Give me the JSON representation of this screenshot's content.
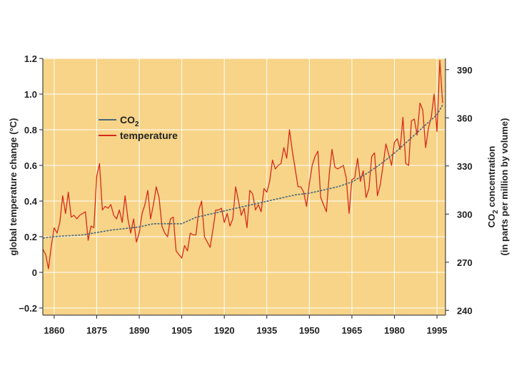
{
  "chart_data": {
    "type": "line",
    "title": "",
    "xlim": [
      1856,
      1998
    ],
    "y_left": {
      "label": "global temperature change (°C)",
      "lim": [
        -0.24,
        1.2
      ],
      "ticks": [
        1.2,
        1.0,
        0.8,
        0.6,
        0.4,
        0.2,
        0,
        -0.2
      ],
      "tick_labels": [
        "1.2",
        "1.0",
        "0.8",
        "0.6",
        "0.4",
        "0.2",
        "0",
        "−0.2"
      ]
    },
    "y_right": {
      "label_line1": "CO2 concentration",
      "label_line2": "(in parts per million by volume)",
      "lim": [
        237,
        397
      ],
      "ticks": [
        390,
        360,
        330,
        300,
        270,
        240
      ],
      "tick_labels": [
        "390",
        "360",
        "330",
        "300",
        "270",
        "240"
      ]
    },
    "x_ticks": [
      1860,
      1875,
      1890,
      1905,
      1920,
      1935,
      1950,
      1965,
      1980,
      1995
    ],
    "x_tick_labels": [
      "1860",
      "1875",
      "1890",
      "1905",
      "1920",
      "1935",
      "1950",
      "1965",
      "1980",
      "1995"
    ],
    "legend": {
      "placement": "top-left",
      "items": [
        {
          "label_main": "CO",
          "label_sub": "2",
          "color": "#4a6a7a"
        },
        {
          "label_main": "temperature",
          "label_sub": "",
          "color": "#d62a1a"
        }
      ]
    },
    "colors": {
      "plot_background": "#f7d488",
      "grid": "#ffffff",
      "co2_line": "#4a6a7a",
      "temperature_line": "#d62a1a"
    },
    "grid": true,
    "series": [
      {
        "name": "temperature",
        "axis": "left",
        "x": [
          1856,
          1857,
          1858,
          1859,
          1860,
          1861,
          1862,
          1863,
          1864,
          1865,
          1866,
          1867,
          1868,
          1869,
          1870,
          1871,
          1872,
          1873,
          1874,
          1875,
          1876,
          1877,
          1878,
          1879,
          1880,
          1881,
          1882,
          1883,
          1884,
          1885,
          1886,
          1887,
          1888,
          1889,
          1890,
          1891,
          1892,
          1893,
          1894,
          1895,
          1896,
          1897,
          1898,
          1899,
          1900,
          1901,
          1902,
          1903,
          1904,
          1905,
          1906,
          1907,
          1908,
          1909,
          1910,
          1911,
          1912,
          1913,
          1914,
          1915,
          1916,
          1917,
          1918,
          1919,
          1920,
          1921,
          1922,
          1923,
          1924,
          1925,
          1926,
          1927,
          1928,
          1929,
          1930,
          1931,
          1932,
          1933,
          1934,
          1935,
          1936,
          1937,
          1938,
          1939,
          1940,
          1941,
          1942,
          1943,
          1944,
          1945,
          1946,
          1947,
          1948,
          1949,
          1950,
          1951,
          1952,
          1953,
          1954,
          1955,
          1956,
          1957,
          1958,
          1959,
          1960,
          1961,
          1962,
          1963,
          1964,
          1965,
          1966,
          1967,
          1968,
          1969,
          1970,
          1971,
          1972,
          1973,
          1974,
          1975,
          1976,
          1977,
          1978,
          1979,
          1980,
          1981,
          1982,
          1983,
          1984,
          1985,
          1986,
          1987,
          1988,
          1989,
          1990,
          1991,
          1992,
          1993,
          1994,
          1995,
          1996,
          1997
        ],
        "y": [
          0.13,
          0.1,
          0.02,
          0.15,
          0.25,
          0.22,
          0.28,
          0.43,
          0.33,
          0.45,
          0.31,
          0.32,
          0.3,
          0.32,
          0.33,
          0.34,
          0.18,
          0.26,
          0.25,
          0.54,
          0.61,
          0.35,
          0.37,
          0.36,
          0.38,
          0.32,
          0.3,
          0.35,
          0.28,
          0.43,
          0.3,
          0.22,
          0.3,
          0.17,
          0.22,
          0.33,
          0.38,
          0.46,
          0.3,
          0.38,
          0.48,
          0.42,
          0.26,
          0.22,
          0.2,
          0.3,
          0.31,
          0.12,
          0.1,
          0.08,
          0.15,
          0.12,
          0.22,
          0.21,
          0.21,
          0.35,
          0.4,
          0.2,
          0.17,
          0.14,
          0.24,
          0.35,
          0.35,
          0.36,
          0.28,
          0.33,
          0.26,
          0.3,
          0.48,
          0.4,
          0.32,
          0.36,
          0.25,
          0.46,
          0.44,
          0.35,
          0.38,
          0.34,
          0.47,
          0.45,
          0.51,
          0.63,
          0.58,
          0.6,
          0.61,
          0.7,
          0.64,
          0.8,
          0.68,
          0.58,
          0.48,
          0.48,
          0.45,
          0.37,
          0.5,
          0.6,
          0.65,
          0.68,
          0.42,
          0.38,
          0.34,
          0.55,
          0.69,
          0.59,
          0.58,
          0.59,
          0.6,
          0.53,
          0.33,
          0.52,
          0.53,
          0.64,
          0.51,
          0.57,
          0.42,
          0.47,
          0.65,
          0.67,
          0.43,
          0.49,
          0.6,
          0.72,
          0.66,
          0.6,
          0.73,
          0.75,
          0.69,
          0.87,
          0.61,
          0.6,
          0.85,
          0.86,
          0.77,
          0.95,
          0.91,
          0.7,
          0.81,
          0.87,
          1.0,
          0.79,
          1.19,
          0.95
        ],
        "color": "#d62a1a"
      },
      {
        "name": "CO2",
        "axis": "right",
        "x": [
          1856,
          1860,
          1870,
          1880,
          1890,
          1895,
          1900,
          1905,
          1910,
          1915,
          1920,
          1925,
          1930,
          1935,
          1940,
          1945,
          1950,
          1955,
          1960,
          1965,
          1970,
          1975,
          1980,
          1985,
          1990,
          1995,
          1997
        ],
        "y": [
          285,
          286,
          287,
          290,
          292,
          294,
          294,
          294,
          298,
          300,
          302,
          304,
          306,
          308,
          310,
          312,
          313,
          315,
          317,
          320,
          325,
          331,
          338,
          346,
          354,
          362,
          368
        ],
        "color": "#4a6a7a"
      }
    ]
  }
}
